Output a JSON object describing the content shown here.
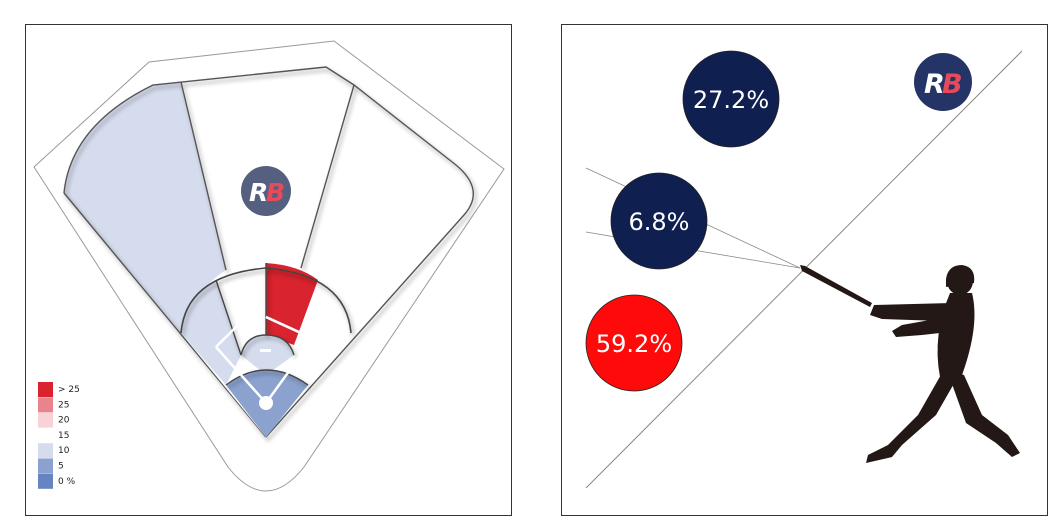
{
  "logo": {
    "r": "R",
    "b": "B"
  },
  "colors": {
    "dark_navy": "#0f1f4f",
    "red": "#ff0a0a",
    "logo_bg": "#556080",
    "logo_b": "#e84a5a",
    "silhouette": "#231815"
  },
  "spray_chart": {
    "legend": [
      {
        "label": "> 25",
        "color": "#d9232e"
      },
      {
        "label": "25",
        "color": "#e8848b"
      },
      {
        "label": "20",
        "color": "#f7d3d5"
      },
      {
        "label": "15",
        "color": "#ffffff"
      },
      {
        "label": "10",
        "color": "#d5dced"
      },
      {
        "label": "5",
        "color": "#8ba2cf"
      },
      {
        "label": "0 %",
        "color": "#6684c2"
      }
    ],
    "zones": [
      {
        "zone": "outfield-left",
        "color": "#d5dced"
      },
      {
        "zone": "outfield-center",
        "color": "#ffffff"
      },
      {
        "zone": "outfield-right",
        "color": "#ffffff"
      },
      {
        "zone": "infield-left",
        "color": "#d5dced"
      },
      {
        "zone": "infield-center-left",
        "color": "#ffffff"
      },
      {
        "zone": "infield-center-right",
        "color": "#d9232e"
      },
      {
        "zone": "infield-right",
        "color": "#ffffff"
      },
      {
        "zone": "near-mound",
        "color": "#d5dced"
      },
      {
        "zone": "home-plate-area",
        "color": "#8ba2cf"
      }
    ]
  },
  "chart_data": {
    "type": "bubble",
    "series": [
      {
        "label": "27.2%",
        "value": 27.2,
        "color": "#0f1f4f"
      },
      {
        "label": "6.8%",
        "value": 6.8,
        "color": "#0f1f4f"
      },
      {
        "label": "59.2%",
        "value": 59.2,
        "color": "#ff0a0a"
      }
    ]
  }
}
